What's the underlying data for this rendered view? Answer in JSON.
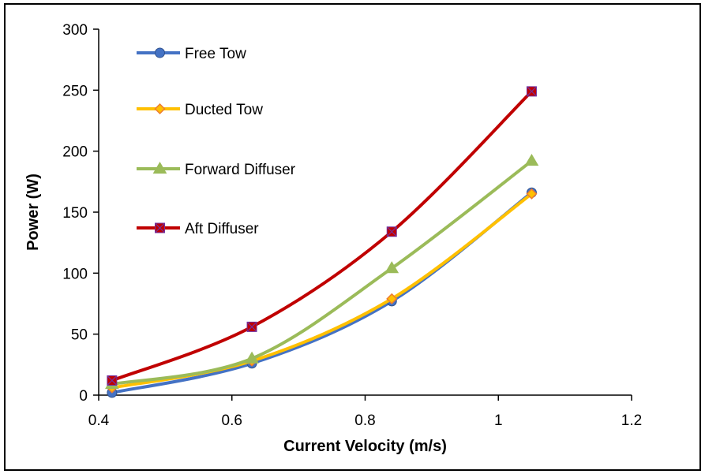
{
  "chart_data": {
    "type": "line",
    "xlabel": "Current Velocity (m/s)",
    "ylabel": "Power (W)",
    "xlim": [
      0.4,
      1.2
    ],
    "ylim": [
      0,
      300
    ],
    "xticks": [
      0.4,
      0.6,
      0.8,
      1,
      1.2
    ],
    "xtick_labels": [
      "0.4",
      "0.6",
      "0.8",
      "1",
      "1.2"
    ],
    "yticks": [
      0,
      50,
      100,
      150,
      200,
      250,
      300
    ],
    "ytick_labels": [
      "0",
      "50",
      "100",
      "150",
      "200",
      "250",
      "300"
    ],
    "grid": false,
    "legend_position": "top-left",
    "x": [
      0.42,
      0.63,
      0.84,
      1.05
    ],
    "series": [
      {
        "name": "Free Tow",
        "values": [
          2,
          26,
          77,
          166
        ],
        "color": "#4472C4",
        "marker": "circle"
      },
      {
        "name": "Ducted Tow",
        "values": [
          6,
          28,
          79,
          165
        ],
        "color": "#FFC000",
        "marker": "diamond"
      },
      {
        "name": "Forward Diffuser",
        "values": [
          9,
          30,
          104,
          192
        ],
        "color": "#9BBB59",
        "marker": "triangle"
      },
      {
        "name": "Aft Diffuser",
        "values": [
          12,
          56,
          134,
          249
        ],
        "color": "#C00000",
        "marker": "square-x"
      }
    ]
  }
}
